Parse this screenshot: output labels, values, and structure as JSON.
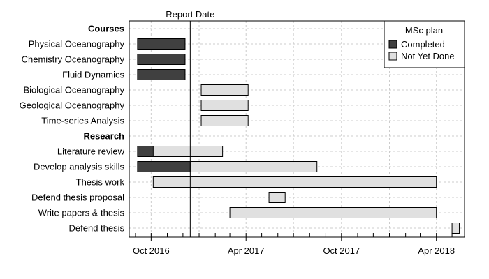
{
  "chart_data": {
    "type": "gantt",
    "report_date": {
      "label": "Report Date",
      "date": "2016-12-15"
    },
    "x_range": [
      "2016-08-20",
      "2018-05-25"
    ],
    "x_ticks": [
      {
        "label": "Oct 2016",
        "date": "2016-10-01"
      },
      {
        "label": "Apr 2017",
        "date": "2017-04-01"
      },
      {
        "label": "Oct 2017",
        "date": "2017-10-01"
      },
      {
        "label": "Apr 2018",
        "date": "2018-04-01"
      }
    ],
    "grid": true,
    "legend": {
      "title": "MSc plan",
      "placement": "top-right",
      "items": [
        {
          "label": "Completed",
          "color": "#404040"
        },
        {
          "label": "Not Yet Done",
          "color": "#e0e0e0"
        }
      ]
    },
    "colors": {
      "completed": "#404040",
      "not_done": "#e0e0e0",
      "outline": "#000000",
      "grid": "#cccccc"
    },
    "groups": [
      {
        "name": "Courses",
        "tasks": [
          {
            "name": "Physical Oceanography",
            "start": "2016-09-05",
            "end": "2016-12-05",
            "completed_until": "2016-12-05"
          },
          {
            "name": "Chemistry Oceanography",
            "start": "2016-09-05",
            "end": "2016-12-05",
            "completed_until": "2016-12-05"
          },
          {
            "name": "Fluid Dynamics",
            "start": "2016-09-05",
            "end": "2016-12-05",
            "completed_until": "2016-12-05"
          },
          {
            "name": "Biological Oceanography",
            "start": "2017-01-05",
            "end": "2017-04-05",
            "completed_until": null
          },
          {
            "name": "Geological Oceanography",
            "start": "2017-01-05",
            "end": "2017-04-05",
            "completed_until": null
          },
          {
            "name": "Time-series Analysis",
            "start": "2017-01-05",
            "end": "2017-04-05",
            "completed_until": null
          }
        ]
      },
      {
        "name": "Research",
        "tasks": [
          {
            "name": "Literature review",
            "start": "2016-09-05",
            "end": "2017-02-15",
            "completed_until": "2016-10-05"
          },
          {
            "name": "Develop analysis skills",
            "start": "2016-09-05",
            "end": "2017-08-15",
            "completed_until": "2016-12-15"
          },
          {
            "name": "Thesis work",
            "start": "2016-10-05",
            "end": "2018-04-01",
            "completed_until": null
          },
          {
            "name": "Defend thesis proposal",
            "start": "2017-05-15",
            "end": "2017-06-15",
            "completed_until": null
          },
          {
            "name": "Write papers & thesis",
            "start": "2017-03-01",
            "end": "2018-04-01",
            "completed_until": null
          },
          {
            "name": "Defend thesis",
            "start": "2018-05-01",
            "end": "2018-05-15",
            "completed_until": null
          }
        ]
      }
    ]
  }
}
